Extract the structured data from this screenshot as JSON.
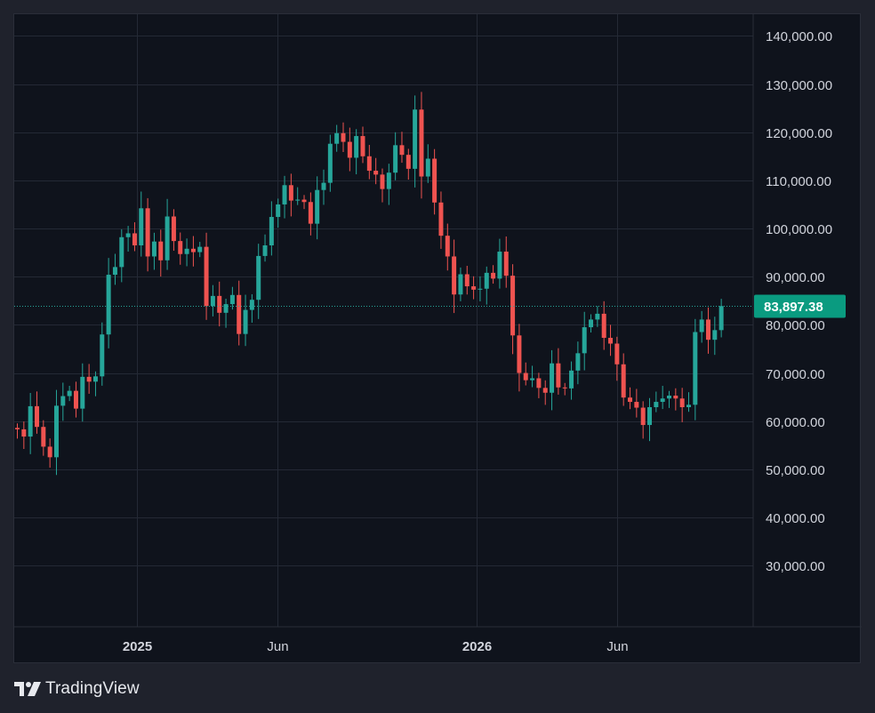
{
  "brand": {
    "name": "TradingView",
    "logo_icon": "tradingview-logo-icon"
  },
  "colors": {
    "background": "#1f222c",
    "pane": "#0f131c",
    "grid": "#242935",
    "axis_text": "#d1d4dc",
    "up": "#26a69a",
    "down": "#ef5350",
    "last_price_label": "#0a9b80"
  },
  "chart_data": {
    "type": "candlestick",
    "interval": "weekly",
    "x_tick_labels": [
      "2025",
      "Jun",
      "2026",
      "Jun"
    ],
    "y_tick_labels": [
      "140,000.00",
      "130,000.00",
      "120,000.00",
      "110,000.00",
      "100,000.00",
      "90,000.00",
      "80,000.00",
      "70,000.00",
      "60,000.00",
      "50,000.00",
      "40,000.00",
      "30,000.00"
    ],
    "y_ticks": [
      140000,
      130000,
      120000,
      110000,
      100000,
      90000,
      80000,
      70000,
      60000,
      50000,
      40000,
      30000
    ],
    "ylim": [
      17300,
      144500
    ],
    "x_range": [
      "2024-08-26",
      "2026-11-16"
    ],
    "grid": true,
    "last_price": 83897.38,
    "last_price_label": "83,897.38",
    "start_date": "2024-08-26",
    "closes": [
      58300,
      56800,
      63100,
      58800,
      54700,
      52500,
      63200,
      65200,
      66300,
      62600,
      69200,
      68200,
      69300,
      78000,
      90400,
      92000,
      98200,
      99000,
      96500,
      104200,
      94200,
      97300,
      93400,
      102500,
      97400,
      94700,
      95800,
      95100,
      96200,
      83900,
      86000,
      82500,
      84300,
      86200,
      78100,
      83100,
      85200,
      94300,
      96500,
      102400,
      105000,
      109000,
      105800,
      106000,
      105500,
      101000,
      108000,
      109500,
      117600,
      119800,
      118000,
      114700,
      119200,
      115000,
      112000,
      111200,
      108200,
      111600,
      117300,
      115300,
      112400,
      124700,
      110800,
      114500,
      105400,
      98500,
      94200,
      86300,
      90500,
      88000,
      87300,
      87500,
      90800,
      89600,
      95200,
      90200,
      77800,
      70000,
      68500,
      68900,
      66900,
      65900,
      72000,
      67000,
      66800,
      70500,
      74100,
      79500,
      81100,
      82300,
      77300,
      76100,
      71800,
      64900,
      64000,
      62800,
      59200,
      62900,
      64000,
      64700,
      65300,
      64700,
      62900,
      63400,
      78500,
      81100,
      76900,
      78900,
      83897.38
    ],
    "x": [
      "2024-08-26",
      "2024-09-02",
      "2024-09-09",
      "2024-09-16",
      "2024-09-23",
      "2024-09-30",
      "2024-10-07",
      "2024-10-14",
      "2024-10-21",
      "2024-10-28",
      "2024-11-04",
      "2024-11-11",
      "2024-11-18",
      "2024-11-25",
      "2024-12-02",
      "2024-12-09",
      "2024-12-16",
      "2024-12-23",
      "2024-12-30",
      "2025-01-06",
      "2025-01-13",
      "2025-01-20",
      "2025-01-27",
      "2025-02-03",
      "2025-02-10",
      "2025-02-17",
      "2025-02-24",
      "2025-03-03",
      "2025-03-10",
      "2025-03-17",
      "2025-03-24",
      "2025-03-31",
      "2025-04-07",
      "2025-04-14",
      "2025-04-21",
      "2025-04-28",
      "2025-05-05",
      "2025-05-12",
      "2025-05-19",
      "2025-05-26",
      "2025-06-02",
      "2025-06-09",
      "2025-06-16",
      "2025-06-23",
      "2025-06-30",
      "2025-07-07",
      "2025-07-14",
      "2025-07-21",
      "2025-07-28",
      "2025-08-04",
      "2025-08-11",
      "2025-08-18",
      "2025-08-25",
      "2025-09-01",
      "2025-09-08",
      "2025-09-15",
      "2025-09-22",
      "2025-09-29",
      "2025-10-06",
      "2025-10-13",
      "2025-10-20",
      "2025-10-27",
      "2025-11-03",
      "2025-11-10",
      "2025-11-17",
      "2025-11-24",
      "2025-12-01",
      "2025-12-08",
      "2025-12-15",
      "2025-12-22",
      "2025-12-29",
      "2026-01-05",
      "2026-01-12",
      "2026-01-19",
      "2026-01-26",
      "2026-02-02",
      "2026-02-09",
      "2026-02-16",
      "2026-02-23",
      "2026-03-02",
      "2026-03-09",
      "2026-03-16",
      "2026-03-23",
      "2026-03-30",
      "2026-04-06",
      "2026-04-13",
      "2026-04-20",
      "2026-04-27",
      "2026-05-04",
      "2026-05-11",
      "2026-05-18",
      "2026-05-25",
      "2026-06-01",
      "2026-06-08",
      "2026-06-15",
      "2026-06-22",
      "2026-06-29",
      "2026-07-06",
      "2026-07-13",
      "2026-07-20",
      "2026-07-27",
      "2026-08-03",
      "2026-08-10",
      "2026-08-17",
      "2026-08-24",
      "2026-08-31",
      "2026-09-07",
      "2026-09-14",
      "2026-09-21"
    ]
  }
}
